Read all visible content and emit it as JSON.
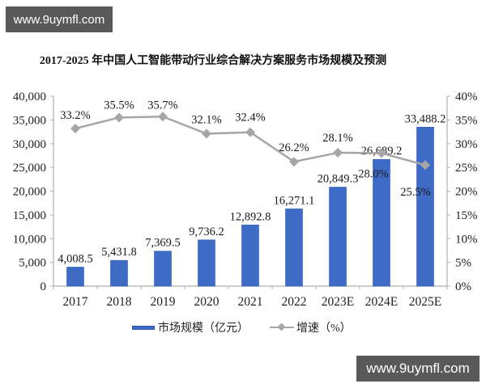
{
  "watermarks": {
    "top_left": "www.9uymfl.com",
    "bottom_right": "www.9uymfl.com"
  },
  "chart_data": {
    "type": "bar+line",
    "title": "2017-2025 年中国人工智能带动行业综合解决方案服务市场规模及预测",
    "xlabel": "",
    "ylabel": "",
    "categories": [
      "2017",
      "2018",
      "2019",
      "2020",
      "2021",
      "2022",
      "2023E",
      "2024E",
      "2025E"
    ],
    "series": [
      {
        "name": "市场规模（亿元）",
        "type": "bar",
        "axis": "left",
        "color": "#3e6bc5",
        "values": [
          4008.5,
          5431.8,
          7369.5,
          9736.2,
          12892.8,
          16271.1,
          20849.3,
          26689.2,
          33488.2
        ],
        "labels": [
          "4,008.5",
          "5,431.8",
          "7,369.5",
          "9,736.2",
          "12,892.8",
          "16,271.1",
          "20,849.3",
          "26,689.2",
          "33,488.2"
        ]
      },
      {
        "name": "增速（%）",
        "type": "line",
        "axis": "right",
        "color": "#a6a6a6",
        "marker": "diamond",
        "values": [
          33.2,
          35.5,
          35.7,
          32.1,
          32.4,
          26.2,
          28.1,
          28.0,
          25.5
        ],
        "labels": [
          "33.2%",
          "35.5%",
          "35.7%",
          "32.1%",
          "32.4%",
          "26.2%",
          "28.1%",
          "28.0%",
          "25.5%"
        ],
        "label_offsets": [
          [
            0,
            -12
          ],
          [
            0,
            -11
          ],
          [
            0,
            -10
          ],
          [
            0,
            -13
          ],
          [
            0,
            -14
          ],
          [
            0,
            -13
          ],
          [
            0,
            -14
          ],
          [
            -10,
            30
          ],
          [
            -12,
            38
          ]
        ]
      }
    ],
    "y_left": {
      "range": [
        0,
        40000
      ],
      "tick_labels": [
        "0",
        "5,000",
        "10,000",
        "15,000",
        "20,000",
        "25,000",
        "30,000",
        "35,000",
        "40,000"
      ]
    },
    "y_right": {
      "range": [
        0,
        40
      ],
      "tick_labels": [
        "0%",
        "5%",
        "10%",
        "15%",
        "20%",
        "25%",
        "30%",
        "35%",
        "40%"
      ]
    },
    "grid": false,
    "legend": {
      "position": "bottom"
    }
  }
}
